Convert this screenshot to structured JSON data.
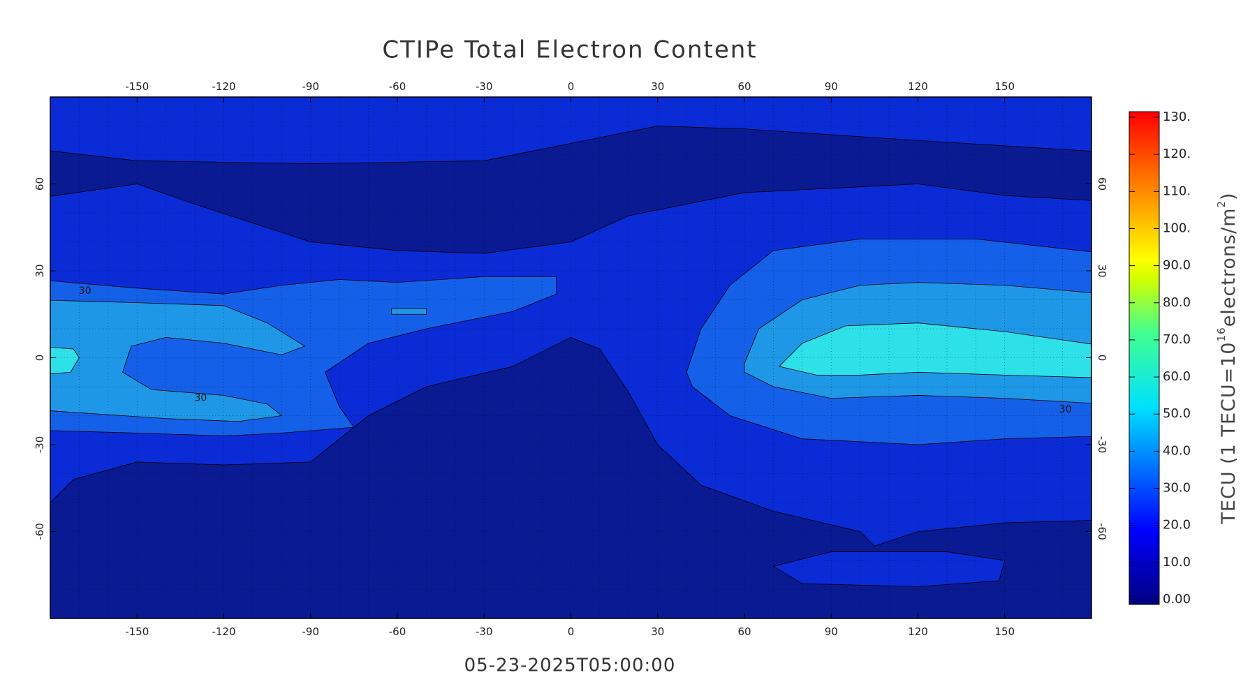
{
  "chart_data": {
    "type": "contour",
    "title": "CTIPe Total Electron Content",
    "timestamp": "05-23-2025T05:00:00",
    "xlim": [
      -180,
      180
    ],
    "ylim": [
      -90,
      90
    ],
    "xticks": [
      -150,
      -120,
      -90,
      -60,
      -30,
      0,
      30,
      60,
      90,
      120,
      150
    ],
    "yticks": [
      -60,
      -30,
      0,
      30,
      60
    ],
    "contour_labels": [
      30,
      30,
      30
    ],
    "colorbar": {
      "label": [
        "TECU (1 TECU=10",
        "16",
        "electrons/m",
        "2",
        ")"
      ],
      "lim": [
        0,
        130
      ],
      "ticks": [
        {
          "value": 0,
          "label": "0.00"
        },
        {
          "value": 10,
          "label": "10.0"
        },
        {
          "value": 20,
          "label": "20.0"
        },
        {
          "value": 30,
          "label": "30.0"
        },
        {
          "value": 40,
          "label": "40.0"
        },
        {
          "value": 50,
          "label": "50.0"
        },
        {
          "value": 60,
          "label": "60.0"
        },
        {
          "value": 70,
          "label": "70.0"
        },
        {
          "value": 80,
          "label": "80.0"
        },
        {
          "value": 90,
          "label": "90.0"
        },
        {
          "value": 100,
          "label": "100."
        },
        {
          "value": 110,
          "label": "110."
        },
        {
          "value": 120,
          "label": "120."
        },
        {
          "value": 130,
          "label": "130."
        }
      ]
    }
  }
}
